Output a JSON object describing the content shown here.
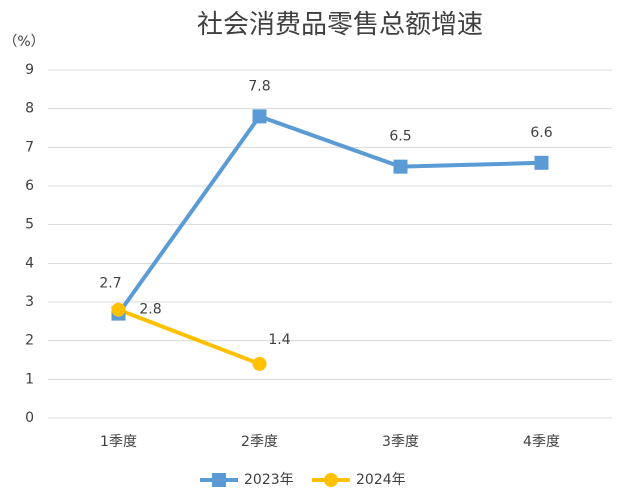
{
  "chart_data": {
    "type": "line",
    "title": "社会消费品零售总额增速",
    "ylabel": "（%）",
    "categories": [
      "1季度",
      "2季度",
      "3季度",
      "4季度"
    ],
    "series": [
      {
        "name": "2023年",
        "color": "#5b9bd5",
        "marker": "square",
        "values": [
          2.7,
          7.8,
          6.5,
          6.6
        ]
      },
      {
        "name": "2024年",
        "color": "#ffc000",
        "marker": "circle",
        "values": [
          2.8,
          1.4,
          null,
          null
        ]
      }
    ],
    "ylim": [
      0,
      9
    ],
    "yticks": [
      0,
      1,
      2,
      3,
      4,
      5,
      6,
      7,
      8,
      9
    ],
    "grid": true,
    "legend": "bottom"
  }
}
